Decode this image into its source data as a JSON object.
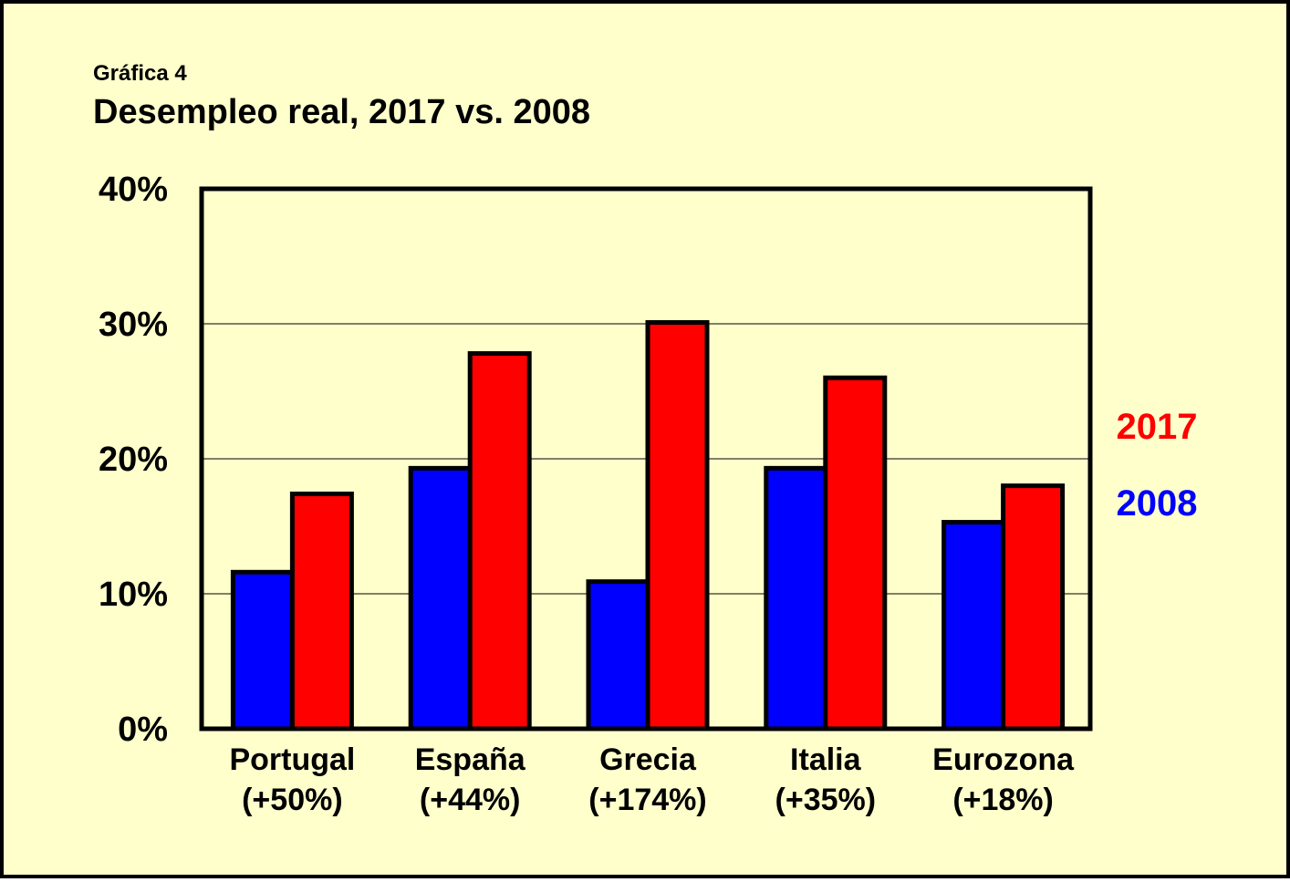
{
  "chart_data": {
    "type": "bar",
    "supertitle": "Gráfica 4",
    "title": "Desempleo real, 2017 vs. 2008",
    "categories": [
      "Portugal",
      "España",
      "Grecia",
      "Italia",
      "Eurozona"
    ],
    "category_notes": [
      "(+50%)",
      "(+44%)",
      "(+174%)",
      "(+35%)",
      "(+18%)"
    ],
    "series": [
      {
        "name": "2008",
        "color": "#0000ff",
        "values": [
          11.6,
          19.3,
          10.9,
          19.3,
          15.3
        ]
      },
      {
        "name": "2017",
        "color": "#ff0000",
        "values": [
          17.4,
          27.8,
          30.1,
          26.0,
          18.0
        ]
      }
    ],
    "ylim": [
      0,
      40
    ],
    "yticks": [
      0,
      10,
      20,
      30,
      40
    ],
    "ytick_labels": [
      "0%",
      "10%",
      "20%",
      "30%",
      "40%"
    ],
    "xlabel": "",
    "ylabel": "",
    "grid": true,
    "legend_position": "right",
    "background_color": "#ffffcc"
  }
}
